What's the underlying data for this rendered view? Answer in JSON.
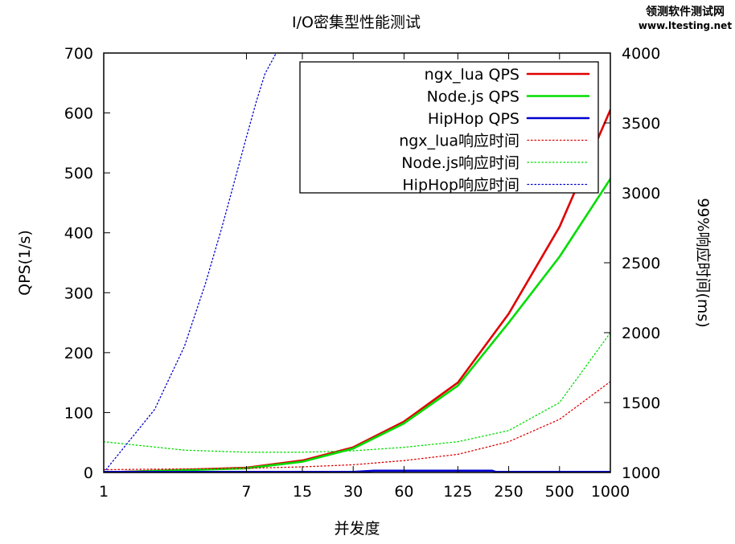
{
  "watermark": {
    "line1": "领测软件测试网",
    "line2": "www.ltesting.net"
  },
  "chart_data": {
    "type": "line",
    "title": "I/O密集型性能测试",
    "xlabel": "并发度",
    "ylabel": "QPS(1/s)",
    "y2label": "99%响应时间(ms)",
    "x_scale": "log",
    "xticks": [
      1,
      7,
      15,
      30,
      60,
      125,
      250,
      500,
      1000
    ],
    "ylim": [
      0,
      700
    ],
    "yticks": [
      0,
      100,
      200,
      300,
      400,
      500,
      600,
      700
    ],
    "y2lim": [
      1000,
      4000
    ],
    "y2ticks": [
      1000,
      1500,
      2000,
      2500,
      3000,
      3500,
      4000
    ],
    "grid": false,
    "legend_position": "top-right",
    "series": [
      {
        "name": "ngx_lua QPS",
        "axis": "y",
        "color": "#e00000",
        "style": "solid",
        "x": [
          1,
          7,
          15,
          30,
          60,
          125,
          250,
          500,
          1000
        ],
        "values": [
          0,
          8,
          20,
          42,
          85,
          150,
          265,
          410,
          605
        ]
      },
      {
        "name": "Node.js QPS",
        "axis": "y",
        "color": "#00dd00",
        "style": "solid",
        "x": [
          1,
          7,
          15,
          30,
          60,
          125,
          250,
          500,
          1000
        ],
        "values": [
          0,
          7,
          18,
          40,
          82,
          145,
          250,
          360,
          490
        ]
      },
      {
        "name": "HipHop QPS",
        "axis": "y",
        "color": "#0000d0",
        "style": "solid",
        "x": [
          1,
          7,
          15,
          30,
          40,
          60,
          125,
          200,
          210,
          250,
          500,
          1000
        ],
        "values": [
          1,
          1,
          1,
          1,
          3,
          3,
          3,
          3,
          1,
          1,
          1,
          1
        ]
      },
      {
        "name": "ngx_lua响应时间",
        "axis": "y2",
        "color": "#e00000",
        "style": "dotted",
        "x": [
          1,
          7,
          15,
          30,
          60,
          125,
          250,
          500,
          1000
        ],
        "values": [
          1020,
          1030,
          1040,
          1055,
          1085,
          1130,
          1220,
          1380,
          1650
        ]
      },
      {
        "name": "Node.js响应时间",
        "axis": "y2",
        "color": "#00dd00",
        "style": "dotted",
        "x": [
          1,
          3,
          7,
          15,
          30,
          60,
          125,
          250,
          500,
          1000
        ],
        "values": [
          1220,
          1160,
          1145,
          1145,
          1155,
          1180,
          1220,
          1300,
          1500,
          2000
        ]
      },
      {
        "name": "HipHop响应时间",
        "axis": "y2",
        "color": "#0000d0",
        "style": "dotted",
        "x": [
          1,
          2,
          3,
          4,
          5,
          6,
          7,
          8,
          9,
          10.5
        ],
        "values": [
          1000,
          1450,
          1900,
          2350,
          2750,
          3100,
          3400,
          3650,
          3850,
          4000
        ]
      }
    ]
  }
}
